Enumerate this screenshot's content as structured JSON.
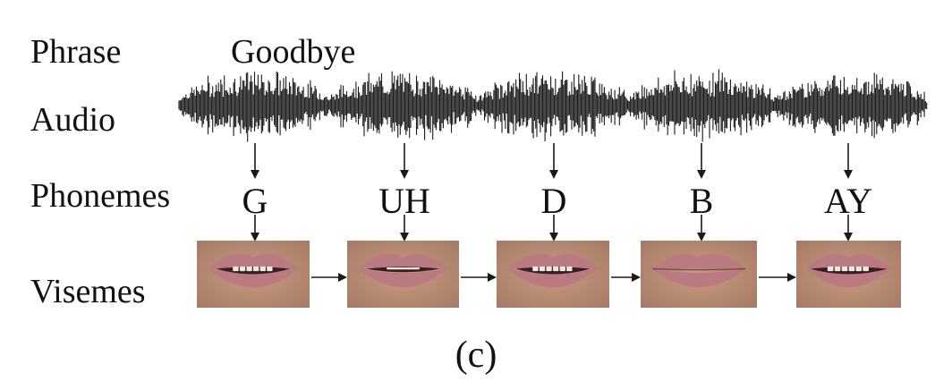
{
  "rows": {
    "phrase": "Phrase",
    "audio": "Audio",
    "phonemes": "Phonemes",
    "visemes": "Visemes"
  },
  "phrase_text": "Goodbye",
  "phonemes": [
    "G",
    "UH",
    "D",
    "B",
    "AY"
  ],
  "visemes": [
    {
      "name": "viseme-G",
      "mouth": "open-teeth"
    },
    {
      "name": "viseme-UH",
      "mouth": "slightly-open"
    },
    {
      "name": "viseme-D",
      "mouth": "open-teeth"
    },
    {
      "name": "viseme-B",
      "mouth": "closed"
    },
    {
      "name": "viseme-AY",
      "mouth": "wide-teeth"
    }
  ],
  "caption": "(c)",
  "colors": {
    "text": "#111111",
    "waveform": "#1a1a1a",
    "arrow": "#1a1a1a",
    "skin": "#b88a72",
    "lip": "#b97a82",
    "teeth": "#efe8dc",
    "mouth_dark": "#3a1e22"
  }
}
